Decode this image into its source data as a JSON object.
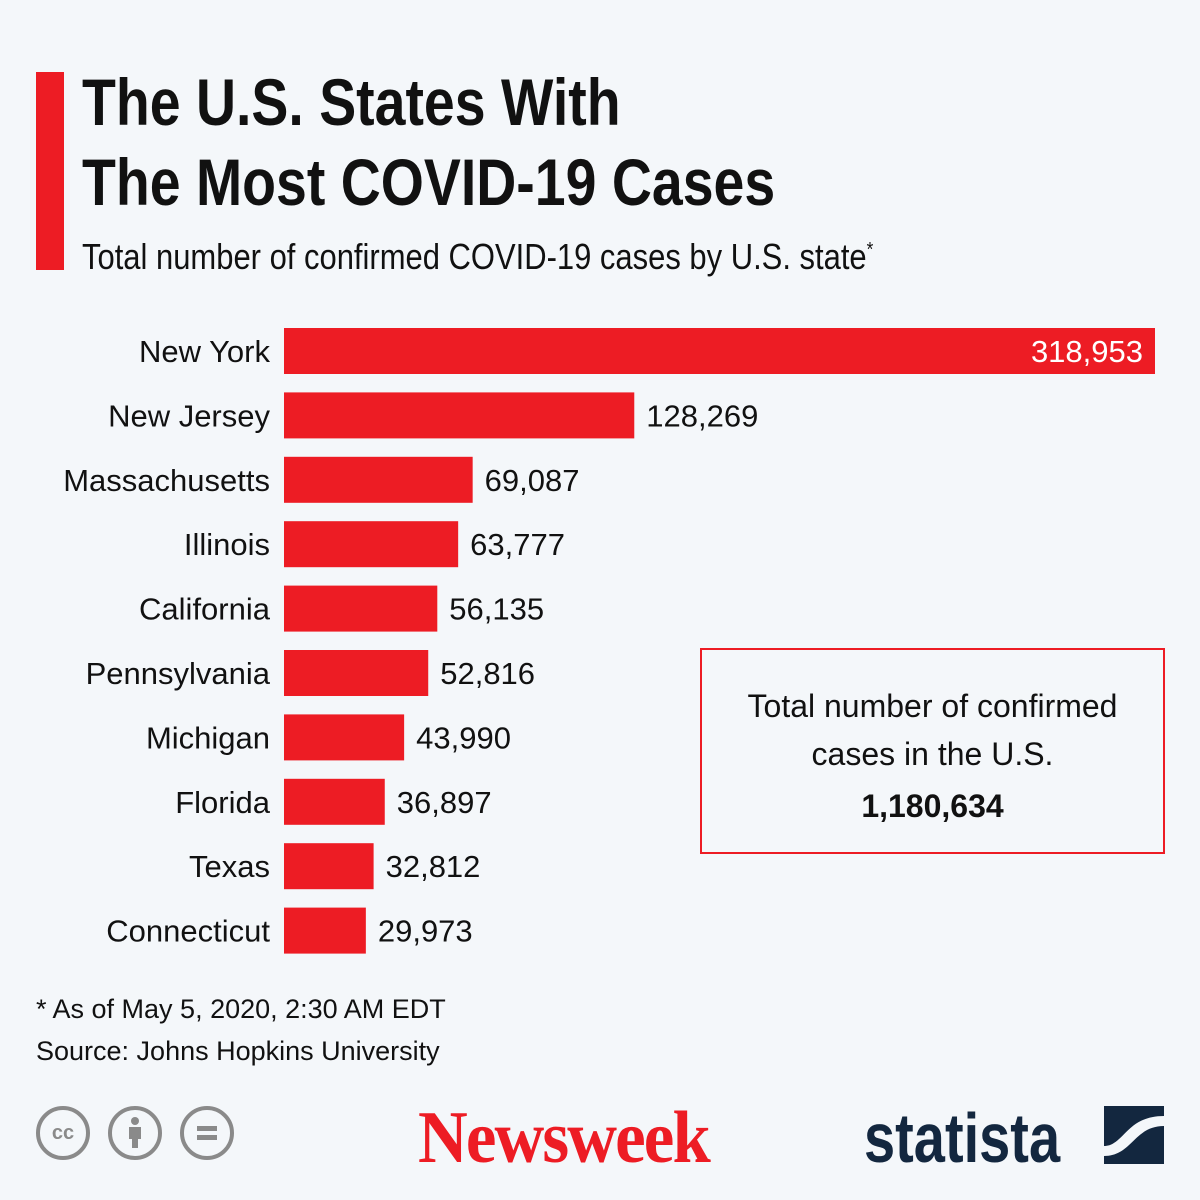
{
  "header": {
    "title_line1": "The U.S. States With",
    "title_line2": "The Most COVID-19 Cases",
    "subtitle": "Total number of confirmed COVID-19 cases by U.S. state",
    "subtitle_mark": "*"
  },
  "chart_data": {
    "type": "bar",
    "orientation": "horizontal",
    "categories": [
      "New York",
      "New Jersey",
      "Massachusetts",
      "Illinois",
      "California",
      "Pennsylvania",
      "Michigan",
      "Florida",
      "Texas",
      "Connecticut"
    ],
    "values": [
      318953,
      128269,
      69087,
      63777,
      56135,
      52816,
      43990,
      36897,
      32812,
      29973
    ],
    "labels": [
      "318,953",
      "128,269",
      "69,087",
      "63,777",
      "56,135",
      "52,816",
      "43,990",
      "36,897",
      "32,812",
      "29,973"
    ],
    "title": "Total number of confirmed COVID-19 cases by U.S. state",
    "grid": false,
    "bar_color": "#ed1c24"
  },
  "callout": {
    "text": "Total number of confirmed cases in the U.S.",
    "value": "1,180,634"
  },
  "footer": {
    "note": "* As of May 5, 2020, 2:30 AM EDT",
    "source": "Source: Johns Hopkins University",
    "cc_icons": [
      "cc-icon",
      "attribution-icon",
      "no-derivatives-icon"
    ],
    "brand1": "Newsweek",
    "brand2": "statista"
  },
  "colors": {
    "accent": "#ed1c24",
    "background": "#f4f7fa",
    "statista": "#13273f"
  }
}
